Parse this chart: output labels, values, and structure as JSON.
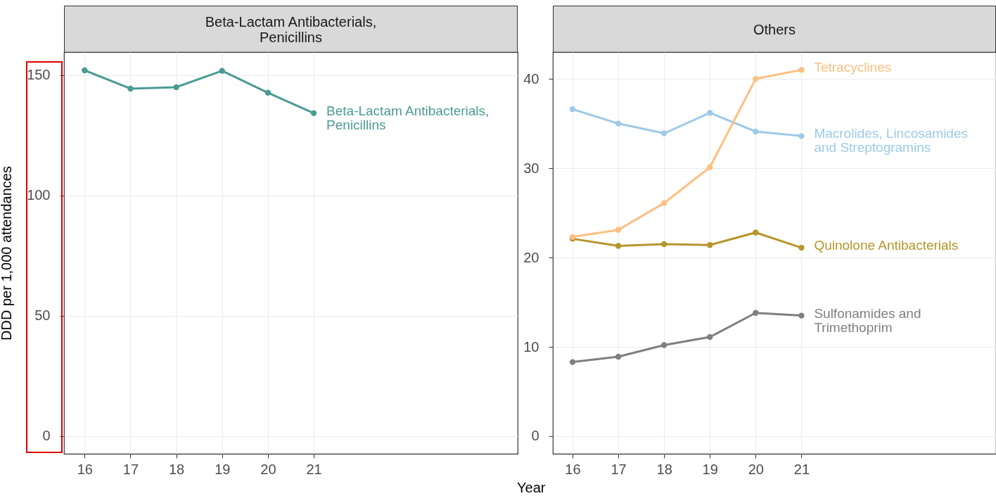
{
  "chart_data": [
    {
      "type": "line",
      "title": "Beta-Lactam Antibacterials,\nPenicillins",
      "xlabel": "Year",
      "ylabel": "DDD per 1,000 attendances",
      "x": [
        16,
        17,
        18,
        19,
        20,
        21
      ],
      "xlim": [
        15.55,
        25.45
      ],
      "xticks": [
        16,
        17,
        18,
        19,
        20,
        21
      ],
      "ylim": [
        -7.4,
        159.6
      ],
      "yticks": [
        0,
        50,
        100,
        150
      ],
      "grid": true,
      "marker": "circle",
      "legend": false,
      "series": [
        {
          "name": "Beta-Lactam Antibacterials,\nPenicillins",
          "color": "#4a9b93",
          "values": [
            152,
            144.4,
            145,
            151.8,
            142.7,
            134.2
          ]
        }
      ]
    },
    {
      "type": "line",
      "title": "Others",
      "x": [
        16,
        17,
        18,
        19,
        20,
        21
      ],
      "xlim": [
        15.57,
        25.25
      ],
      "xticks": [
        16,
        17,
        18,
        19,
        20,
        21
      ],
      "ylim": [
        -1.97,
        43
      ],
      "yticks": [
        0,
        10,
        20,
        30,
        40
      ],
      "grid": true,
      "marker": "circle",
      "legend": false,
      "series": [
        {
          "name": "Tetracyclines",
          "color": "#fdbf7f",
          "values": [
            22.3,
            23.1,
            26.1,
            30.1,
            40.0,
            41.0
          ]
        },
        {
          "name": "Macrolides, Lincosamides\nand Streptogramins",
          "color": "#9ecae9",
          "values": [
            36.6,
            35.0,
            33.9,
            36.2,
            34.1,
            33.6
          ]
        },
        {
          "name": "Quinolone Antibacterials",
          "color": "#b5962a",
          "values": [
            22.1,
            21.3,
            21.5,
            21.4,
            22.8,
            21.1
          ]
        },
        {
          "name": "Sulfonamides and\nTrimethoprim",
          "color": "#7f7f7f",
          "values": [
            8.3,
            8.9,
            10.2,
            11.1,
            13.8,
            13.5
          ]
        }
      ]
    }
  ]
}
